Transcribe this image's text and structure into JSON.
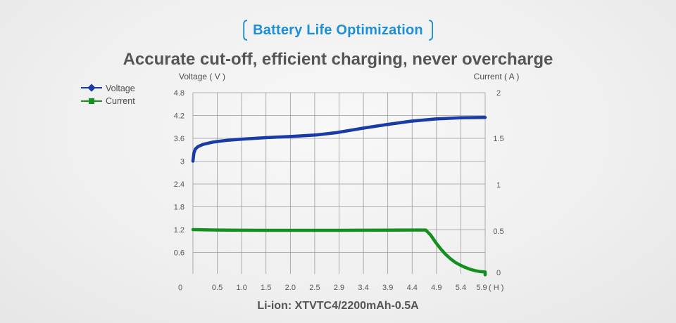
{
  "header": {
    "badge": "Battery Life Optimization",
    "headline": "Accurate cut-off, efficient charging, never overcharge"
  },
  "footer": {
    "caption": "Li-ion: XTVTC4/2200mAh-0.5A"
  },
  "colors": {
    "voltage": "#1a3aa6",
    "current": "#14901e",
    "accent": "#1d8fd6"
  },
  "chart_data": {
    "type": "line",
    "title": "",
    "xlabel": "( H )",
    "ylabel_left": "Voltage ( V )",
    "ylabel_right": "Current ( A )",
    "x_zero_label": "0",
    "x_ticks": [
      0.5,
      1.0,
      1.5,
      2.0,
      2.5,
      2.9,
      3.4,
      3.9,
      4.4,
      4.9,
      5.4,
      5.9
    ],
    "x_tick_labels": [
      "0.5",
      "1.0",
      "1.5",
      "2.0",
      "2.5",
      "2.9",
      "3.4",
      "3.9",
      "4.4",
      "4.9",
      "5.4",
      "5.9"
    ],
    "x_range": [
      0,
      5.9
    ],
    "y_left_ticks": [
      "0.6",
      "1.2",
      "1.8",
      "2.4",
      "3",
      "3.6",
      "4.2",
      "4.8"
    ],
    "y_left_values": [
      0.6,
      1.2,
      1.8,
      2.4,
      3.0,
      3.6,
      4.2,
      4.8
    ],
    "y_left_range": [
      0,
      4.8
    ],
    "y_right_ticks": [
      "0",
      "0.5",
      "1",
      "1.5",
      "2"
    ],
    "y_right_values": [
      0,
      0.5,
      1.0,
      1.5,
      2.0
    ],
    "y_right_range": [
      0,
      2.0
    ],
    "grid": true,
    "legend_position": "top-left",
    "series": [
      {
        "name": "Voltage",
        "axis": "left",
        "x": [
          0,
          0.02,
          0.05,
          0.1,
          0.2,
          0.4,
          0.7,
          1.0,
          1.5,
          2.0,
          2.5,
          2.9,
          3.4,
          3.9,
          4.4,
          4.9,
          5.4,
          5.9
        ],
        "values": [
          3.0,
          3.22,
          3.32,
          3.38,
          3.44,
          3.5,
          3.55,
          3.58,
          3.62,
          3.65,
          3.69,
          3.75,
          3.86,
          3.96,
          4.05,
          4.11,
          4.14,
          4.15
        ]
      },
      {
        "name": "Current",
        "axis": "right",
        "x": [
          0,
          0.5,
          1.0,
          1.5,
          2.0,
          2.5,
          2.9,
          3.4,
          3.9,
          4.4,
          4.7,
          4.8,
          4.9,
          5.0,
          5.1,
          5.2,
          5.3,
          5.4,
          5.5,
          5.6,
          5.7,
          5.8,
          5.9,
          5.9
        ],
        "values": [
          0.5,
          0.495,
          0.493,
          0.492,
          0.492,
          0.492,
          0.492,
          0.493,
          0.494,
          0.495,
          0.495,
          0.44,
          0.36,
          0.29,
          0.23,
          0.18,
          0.14,
          0.11,
          0.085,
          0.065,
          0.05,
          0.04,
          0.035,
          0.005
        ]
      }
    ]
  }
}
